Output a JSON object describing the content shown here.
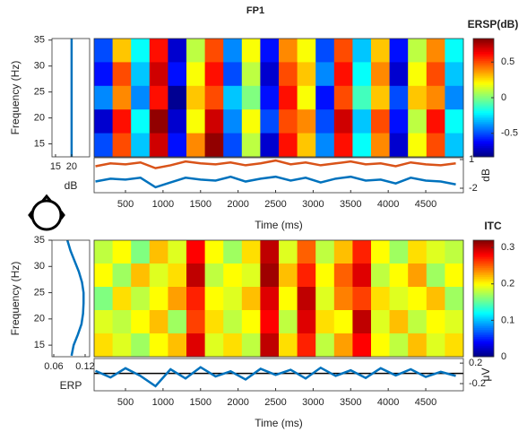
{
  "title": "FP1",
  "chart_data": [
    {
      "type": "heatmap",
      "title": "ERSP(dB)",
      "ylabel": "Frequency (Hz)",
      "colormap": "jet",
      "xlim": [
        82,
        5001
      ],
      "ylim": [
        12.5,
        35.3
      ],
      "yticks": [
        15,
        20,
        25,
        30,
        35
      ],
      "clim": [
        -0.83,
        0.83
      ],
      "cticks": [
        -0.5,
        0,
        0.5
      ],
      "values": [
        [
          -0.5,
          0.3,
          -0.2,
          0.6,
          -0.7,
          0.1,
          0.5,
          -0.4,
          0.2,
          -0.6,
          0.4,
          0.2,
          -0.5,
          0.5,
          -0.3,
          0.3,
          -0.6,
          0.1,
          0.4,
          -0.2
        ],
        [
          -0.6,
          0.5,
          -0.3,
          0.7,
          -0.6,
          0.2,
          0.6,
          -0.5,
          0.1,
          -0.7,
          0.5,
          0.3,
          -0.4,
          0.6,
          -0.2,
          0.4,
          -0.7,
          0.2,
          0.5,
          -0.3
        ],
        [
          -0.4,
          0.4,
          -0.4,
          0.6,
          -0.8,
          0.3,
          0.5,
          -0.3,
          0.0,
          -0.6,
          0.6,
          0.2,
          -0.6,
          0.5,
          -0.1,
          0.3,
          -0.5,
          0.3,
          0.4,
          -0.4
        ],
        [
          -0.7,
          0.6,
          -0.2,
          0.8,
          -0.7,
          0.2,
          0.7,
          -0.4,
          0.2,
          -0.5,
          0.5,
          0.4,
          -0.5,
          0.7,
          -0.3,
          0.5,
          -0.6,
          0.1,
          0.6,
          -0.2
        ],
        [
          -0.5,
          0.5,
          -0.3,
          0.7,
          -0.6,
          0.4,
          0.8,
          -0.5,
          0.1,
          -0.7,
          0.6,
          0.3,
          -0.4,
          0.6,
          -0.2,
          0.4,
          -0.7,
          0.2,
          0.5,
          -0.3
        ]
      ]
    },
    {
      "type": "line",
      "orientation": "vertical",
      "xlabel": "dB",
      "xlim": [
        13.9,
        25.6
      ],
      "xticks": [
        15,
        20
      ],
      "ylim": [
        12.5,
        35.3
      ],
      "y": [
        12.5,
        35.3
      ],
      "values": [
        20,
        20
      ],
      "color": "#0072bd"
    },
    {
      "type": "line",
      "ylabel": "dB",
      "xlabel": "Time (ms)",
      "xlim": [
        82,
        5001
      ],
      "xticks": [
        500,
        1000,
        1500,
        2000,
        2500,
        3000,
        3500,
        4000,
        4500
      ],
      "ylim": [
        -2.47,
        1.19
      ],
      "yticks": [
        -2,
        1
      ],
      "x": [
        100,
        300,
        500,
        700,
        900,
        1100,
        1300,
        1500,
        1700,
        1900,
        2100,
        2300,
        2500,
        2700,
        2900,
        3100,
        3300,
        3500,
        3700,
        3900,
        4100,
        4300,
        4500,
        4700,
        4900
      ],
      "series": [
        {
          "color": "#d95319",
          "values": [
            0.3,
            0.6,
            0.5,
            0.7,
            0.1,
            0.4,
            0.8,
            0.6,
            0.5,
            0.7,
            0.4,
            0.6,
            0.9,
            0.5,
            0.7,
            0.4,
            0.6,
            0.8,
            0.5,
            0.6,
            0.3,
            0.7,
            0.5,
            0.4,
            0.6
          ]
        },
        {
          "color": "#0072bd",
          "values": [
            -1.3,
            -1.0,
            -1.1,
            -0.9,
            -1.9,
            -1.4,
            -0.9,
            -1.1,
            -1.2,
            -0.8,
            -1.3,
            -1.0,
            -0.8,
            -1.2,
            -0.9,
            -1.4,
            -1.0,
            -0.8,
            -1.2,
            -1.1,
            -1.5,
            -0.9,
            -1.2,
            -1.3,
            -1.6
          ]
        }
      ]
    },
    {
      "type": "heatmap",
      "title": "ITC",
      "ylabel": "Frequency (Hz)",
      "colormap": "jet",
      "xlim": [
        82,
        5001
      ],
      "ylim": [
        12.8,
        35
      ],
      "yticks": [
        15,
        20,
        25,
        30,
        35
      ],
      "clim": [
        0,
        0.32
      ],
      "cticks": [
        0,
        0.1,
        0.2,
        0.3
      ],
      "values": [
        [
          0.18,
          0.2,
          0.16,
          0.22,
          0.19,
          0.28,
          0.2,
          0.17,
          0.21,
          0.3,
          0.19,
          0.25,
          0.18,
          0.22,
          0.27,
          0.2,
          0.17,
          0.21,
          0.19,
          0.18
        ],
        [
          0.2,
          0.17,
          0.22,
          0.19,
          0.21,
          0.3,
          0.18,
          0.2,
          0.19,
          0.31,
          0.22,
          0.27,
          0.2,
          0.25,
          0.29,
          0.18,
          0.2,
          0.23,
          0.17,
          0.2
        ],
        [
          0.16,
          0.21,
          0.18,
          0.2,
          0.23,
          0.27,
          0.2,
          0.19,
          0.22,
          0.29,
          0.2,
          0.3,
          0.19,
          0.24,
          0.26,
          0.21,
          0.19,
          0.2,
          0.22,
          0.17
        ],
        [
          0.19,
          0.18,
          0.2,
          0.22,
          0.17,
          0.26,
          0.21,
          0.18,
          0.2,
          0.28,
          0.18,
          0.29,
          0.21,
          0.2,
          0.3,
          0.19,
          0.22,
          0.18,
          0.2,
          0.19
        ],
        [
          0.21,
          0.19,
          0.17,
          0.2,
          0.22,
          0.29,
          0.19,
          0.21,
          0.18,
          0.3,
          0.21,
          0.27,
          0.18,
          0.23,
          0.28,
          0.2,
          0.18,
          0.22,
          0.19,
          0.21
        ]
      ]
    },
    {
      "type": "line",
      "orientation": "vertical",
      "xlabel": "ERP",
      "xlim": [
        0.0566,
        0.1286
      ],
      "xticks": [
        0.06,
        0.12
      ],
      "ylim": [
        12.8,
        35
      ],
      "y": [
        13,
        15,
        17,
        19,
        21,
        23,
        25,
        27,
        29,
        31,
        33,
        35
      ],
      "values": [
        0.094,
        0.098,
        0.106,
        0.113,
        0.116,
        0.117,
        0.117,
        0.114,
        0.108,
        0.1,
        0.092,
        0.086
      ],
      "color": "#0072bd"
    },
    {
      "type": "line",
      "ylabel": "μV",
      "xlabel": "Time (ms)",
      "xlim": [
        82,
        5001
      ],
      "xticks": [
        500,
        1000,
        1500,
        2000,
        2500,
        3000,
        3500,
        4000,
        4500
      ],
      "ylim": [
        -0.34,
        0.29
      ],
      "yticks": [
        -0.2,
        0.2
      ],
      "x": [
        100,
        300,
        500,
        700,
        900,
        1100,
        1300,
        1500,
        1700,
        1900,
        2100,
        2300,
        2500,
        2700,
        2900,
        3100,
        3300,
        3500,
        3700,
        3900,
        4100,
        4300,
        4500,
        4700,
        4900
      ],
      "series": [
        {
          "color": "#0072bd",
          "values": [
            0.05,
            -0.08,
            0.1,
            -0.05,
            -0.25,
            0.08,
            -0.1,
            0.12,
            -0.06,
            0.04,
            -0.12,
            0.09,
            -0.03,
            0.07,
            -0.1,
            0.11,
            -0.05,
            0.06,
            -0.09,
            0.1,
            -0.04,
            0.08,
            -0.07,
            0.03,
            -0.05
          ]
        }
      ]
    }
  ]
}
